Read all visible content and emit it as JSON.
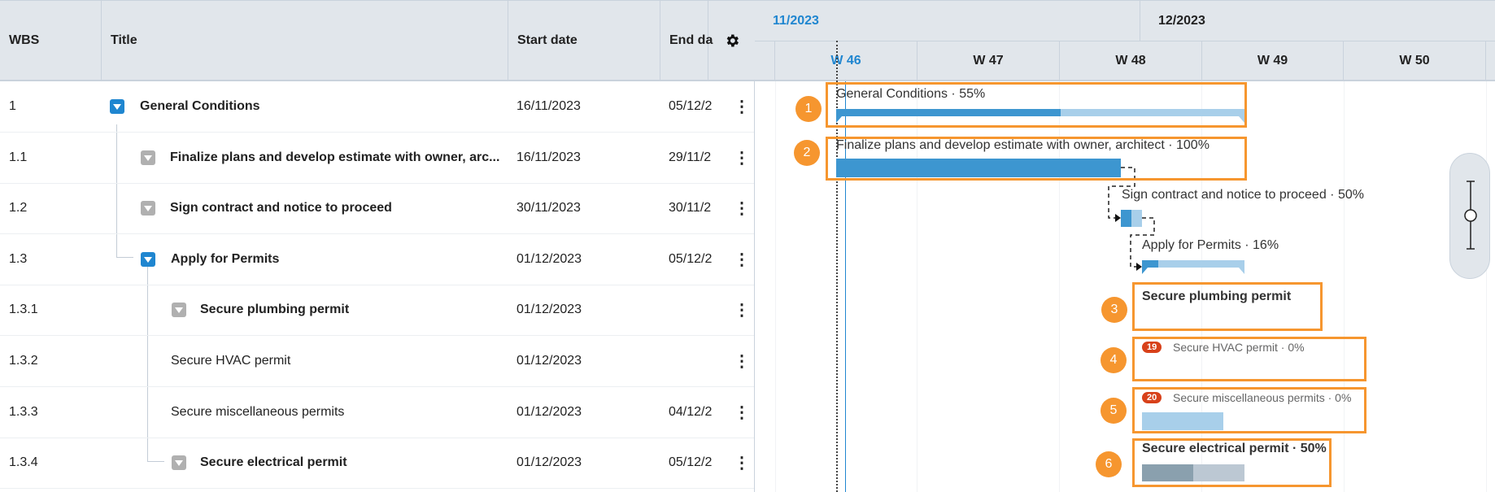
{
  "grid": {
    "columns": {
      "wbs": "WBS",
      "title": "Title",
      "start": "Start date",
      "end": "End da"
    },
    "settings_icon": "gear-icon",
    "rows": [
      {
        "wbs": "1",
        "title": "General Conditions",
        "start": "16/11/2023",
        "end": "05/12/2",
        "bold": true,
        "toggle": "expanded"
      },
      {
        "wbs": "1.1",
        "title": "Finalize plans and develop estimate with owner, arc...",
        "start": "16/11/2023",
        "end": "29/11/2",
        "bold": true,
        "toggle": "collapsed"
      },
      {
        "wbs": "1.2",
        "title": "Sign contract and notice to proceed",
        "start": "30/11/2023",
        "end": "30/11/2",
        "bold": true,
        "toggle": "collapsed"
      },
      {
        "wbs": "1.3",
        "title": "Apply for Permits",
        "start": "01/12/2023",
        "end": "05/12/2",
        "bold": true,
        "toggle": "expanded"
      },
      {
        "wbs": "1.3.1",
        "title": "Secure plumbing permit",
        "start": "01/12/2023",
        "end": "",
        "bold": true,
        "toggle": "collapsed"
      },
      {
        "wbs": "1.3.2",
        "title": "Secure HVAC permit",
        "start": "01/12/2023",
        "end": "",
        "bold": false
      },
      {
        "wbs": "1.3.3",
        "title": "Secure miscellaneous permits",
        "start": "01/12/2023",
        "end": "04/12/2",
        "bold": false
      },
      {
        "wbs": "1.3.4",
        "title": "Secure electrical permit",
        "start": "01/12/2023",
        "end": "05/12/2",
        "bold": true,
        "toggle": "collapsed"
      }
    ]
  },
  "timeline": {
    "months": [
      "11/2023",
      "12/2023"
    ],
    "weeks": [
      "W 46",
      "W 47",
      "W 48",
      "W 49",
      "W 50"
    ],
    "current_color": "#1f86d0"
  },
  "bars": [
    {
      "label": "General Conditions · 55%",
      "progress": 55
    },
    {
      "label": "Finalize plans and develop estimate with owner, architect · 100%",
      "progress": 100
    },
    {
      "label": "Sign contract and notice to proceed · 50%",
      "progress": 50
    },
    {
      "label": "Apply for Permits · 16%",
      "progress": 16
    },
    {
      "label": "Secure plumbing permit"
    },
    {
      "label": "Secure HVAC permit · 0%",
      "badge": "19",
      "progress": 0
    },
    {
      "label": "Secure miscellaneous permits · 0%",
      "badge": "20",
      "progress": 0
    },
    {
      "label": "Secure electrical permit · 50%",
      "progress": 50
    }
  ],
  "annotations": [
    "1",
    "2",
    "3",
    "4",
    "5",
    "6"
  ],
  "colors": {
    "progress": "#3d96d0",
    "remaining": "#a8cfea",
    "annotation": "#f6962f",
    "badge": "#d8411a"
  }
}
